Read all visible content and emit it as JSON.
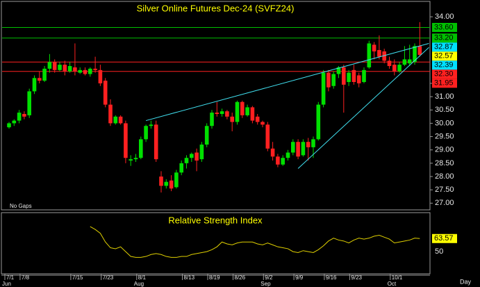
{
  "chart_data": {
    "type": "candlestick",
    "title": "Silver Online Futures Dec-24 (SVFZ24)",
    "categories": [
      "7/1",
      null,
      null,
      "7/8",
      null,
      null,
      null,
      null,
      null,
      null,
      null,
      null,
      null,
      "7/15",
      null,
      null,
      null,
      null,
      null,
      "7/23",
      null,
      null,
      null,
      null,
      null,
      null,
      "8/1",
      null,
      null,
      null,
      null,
      null,
      null,
      null,
      null,
      "8/13",
      null,
      null,
      null,
      null,
      "8/19",
      null,
      null,
      null,
      null,
      "8/26",
      null,
      null,
      null,
      null,
      null,
      "9/2",
      null,
      null,
      null,
      null,
      null,
      "9/9",
      null,
      null,
      null,
      null,
      null,
      "9/16",
      null,
      null,
      null,
      null,
      "9/23",
      null,
      null,
      null,
      null,
      null,
      null,
      null,
      "10/1",
      null,
      null,
      null,
      null,
      null
    ],
    "months": [
      "Jun",
      null,
      null,
      null,
      null,
      null,
      null,
      null,
      null,
      null,
      null,
      null,
      null,
      null,
      null,
      null,
      null,
      null,
      null,
      null,
      null,
      null,
      null,
      null,
      null,
      null,
      "Aug",
      null,
      null,
      null,
      null,
      null,
      null,
      null,
      null,
      null,
      null,
      null,
      null,
      null,
      null,
      null,
      null,
      null,
      null,
      null,
      null,
      null,
      null,
      null,
      null,
      "Sep",
      null,
      null,
      null,
      null,
      null,
      null,
      null,
      null,
      null,
      null,
      null,
      null,
      null,
      null,
      null,
      null,
      null,
      null,
      null,
      null,
      null,
      null,
      null,
      null,
      "Oct",
      null,
      null,
      null,
      null,
      null
    ],
    "open": [
      29.85,
      30.0,
      30.1,
      30.35,
      30.3,
      31.2,
      31.7,
      31.6,
      32.05,
      32.3,
      32.0,
      32.2,
      31.95,
      32.1,
      31.9,
      32.0,
      31.85,
      32.05,
      32.0,
      31.6,
      30.7,
      30.0,
      30.25,
      30.0,
      28.6,
      28.65,
      28.7,
      29.4,
      29.9,
      29.95,
      28.0,
      27.65,
      27.85,
      27.6,
      28.15,
      28.5,
      28.7,
      28.9,
      28.65,
      29.2,
      29.9,
      30.4,
      30.35,
      30.45,
      30.25,
      30.05,
      30.8,
      30.3,
      30.6,
      30.25,
      30.05,
      29.95,
      29.05,
      28.75,
      28.45,
      28.7,
      28.9,
      29.3,
      28.8,
      29.3,
      29.1,
      29.4,
      30.7,
      31.9,
      31.4,
      31.85,
      32.1,
      31.55,
      32.0,
      31.8,
      31.55,
      32.1,
      32.95,
      32.75,
      32.7,
      32.35,
      32.2,
      31.95,
      32.2,
      32.25,
      32.3,
      32.9
    ],
    "high": [
      30.05,
      30.15,
      30.5,
      30.45,
      31.3,
      31.8,
      31.95,
      32.15,
      32.6,
      32.4,
      32.3,
      32.35,
      32.3,
      33.0,
      32.1,
      32.1,
      32.1,
      32.5,
      32.2,
      31.7,
      30.9,
      30.3,
      30.3,
      30.1,
      28.8,
      28.85,
      29.5,
      29.95,
      30.1,
      30.1,
      28.2,
      27.9,
      28.05,
      28.25,
      28.6,
      28.8,
      28.9,
      29.05,
      29.3,
      30.0,
      30.5,
      30.8,
      30.55,
      30.5,
      30.4,
      30.85,
      30.85,
      30.7,
      30.65,
      30.35,
      30.1,
      30.05,
      29.3,
      28.85,
      28.8,
      29.0,
      29.4,
      29.4,
      29.4,
      29.45,
      29.5,
      30.8,
      32.0,
      32.0,
      31.95,
      32.15,
      32.2,
      32.0,
      32.2,
      31.9,
      32.1,
      33.1,
      33.05,
      33.3,
      32.8,
      32.5,
      32.4,
      32.3,
      32.9,
      32.95,
      33.0,
      33.8
    ],
    "low": [
      29.8,
      29.9,
      30.0,
      30.15,
      30.2,
      31.1,
      31.5,
      31.55,
      31.9,
      31.9,
      31.95,
      31.8,
      31.9,
      31.8,
      31.85,
      31.8,
      31.75,
      31.9,
      31.4,
      30.6,
      29.9,
      29.95,
      29.95,
      28.5,
      28.4,
      28.55,
      28.65,
      29.3,
      29.8,
      28.55,
      27.4,
      27.55,
      27.45,
      27.55,
      28.05,
      28.3,
      28.55,
      28.2,
      28.55,
      29.1,
      29.8,
      30.25,
      30.25,
      30.15,
      29.7,
      29.95,
      30.2,
      30.25,
      30.0,
      29.95,
      29.85,
      28.95,
      28.6,
      28.35,
      28.4,
      28.6,
      28.8,
      28.65,
      28.75,
      28.6,
      28.7,
      29.35,
      30.6,
      31.2,
      31.3,
      31.7,
      30.4,
      31.4,
      31.45,
      31.35,
      31.5,
      32.05,
      32.4,
      32.4,
      32.25,
      32.05,
      31.8,
      31.9,
      32.15,
      32.15,
      32.2,
      32.5
    ],
    "close": [
      30.0,
      30.1,
      30.4,
      30.25,
      31.2,
      31.7,
      31.6,
      32.05,
      32.3,
      32.0,
      32.2,
      31.95,
      32.15,
      31.95,
      32.0,
      31.85,
      32.05,
      32.0,
      31.5,
      30.7,
      30.0,
      30.25,
      30.0,
      28.7,
      28.65,
      28.7,
      29.4,
      29.9,
      29.95,
      28.65,
      27.65,
      27.8,
      27.55,
      28.15,
      28.5,
      28.7,
      28.85,
      28.6,
      29.2,
      29.9,
      30.4,
      30.35,
      30.45,
      30.25,
      30.05,
      30.8,
      30.3,
      30.6,
      30.1,
      30.05,
      29.95,
      29.05,
      28.75,
      28.45,
      28.7,
      28.9,
      29.3,
      28.75,
      29.3,
      29.1,
      29.4,
      30.7,
      31.9,
      31.35,
      31.85,
      32.1,
      31.45,
      31.9,
      31.55,
      31.5,
      32.0,
      33.0,
      32.7,
      32.5,
      32.35,
      32.15,
      31.95,
      32.2,
      32.4,
      32.4,
      32.9,
      32.57
    ],
    "up_color": "#00e000",
    "down_color": "#ff2020",
    "ylim": [
      26.8,
      34.5
    ],
    "yticks": [
      {
        "value": 34,
        "label": "34.00"
      },
      {
        "value": 31.5,
        "label": "31.50"
      },
      {
        "value": 31,
        "label": "31.00"
      },
      {
        "value": 30.5,
        "label": "30.50"
      },
      {
        "value": 30,
        "label": "30.00"
      },
      {
        "value": 29.5,
        "label": "29.50"
      },
      {
        "value": 29,
        "label": "29.00"
      },
      {
        "value": 28.5,
        "label": "28.50"
      },
      {
        "value": 28,
        "label": "28.00"
      },
      {
        "value": 27.5,
        "label": "27.50"
      },
      {
        "value": 27,
        "label": "27.00"
      }
    ],
    "price_markers": [
      {
        "value": 33.6,
        "label": "33.60",
        "color": "#00c000",
        "line": true
      },
      {
        "value": 33.2,
        "label": "33.20",
        "color": "#00c000",
        "line": true
      },
      {
        "value": 32.87,
        "label": "32.87",
        "color": "#00e0ff",
        "line": false
      },
      {
        "value": 32.57,
        "label": "32.57",
        "color": "#ffff00",
        "line": false
      },
      {
        "value": 32.39,
        "label": "32.39",
        "color": "#00e0ff",
        "line": false
      },
      {
        "value": 32.3,
        "label": "32.30",
        "color": "#ff2020",
        "line": true
      },
      {
        "value": 31.95,
        "label": "31.95",
        "color": "#ff2020",
        "line": true
      }
    ],
    "trendlines": [
      {
        "x": [
          27,
          82.8
        ],
        "values": [
          30.1,
          33.0
        ],
        "color": "#40e0f0"
      },
      {
        "x": [
          57,
          82.8
        ],
        "values": [
          28.3,
          32.85
        ],
        "color": "#40e0f0"
      }
    ],
    "gap_mode": "No Gaps",
    "interval": "Day",
    "indicator": {
      "type": "line",
      "title": "Relative Strength Index",
      "color": "#e0d000",
      "values": [
        null,
        null,
        null,
        null,
        null,
        null,
        null,
        null,
        null,
        null,
        null,
        null,
        null,
        null,
        null,
        null,
        76,
        73,
        69,
        60,
        54,
        53,
        55,
        50,
        45,
        44,
        44,
        45,
        47,
        48,
        47,
        45,
        44,
        44,
        45,
        45,
        47,
        48,
        49,
        50,
        52,
        55,
        60,
        58,
        57,
        59,
        60,
        60,
        60,
        58,
        57,
        59,
        57,
        55,
        54,
        53,
        50,
        49,
        51,
        50,
        49,
        52,
        56,
        61,
        64,
        62,
        61,
        59,
        62,
        64,
        63,
        64,
        66,
        67,
        65,
        63,
        59,
        60,
        61,
        62,
        64,
        63.57
      ],
      "ylim": [
        27,
        89
      ],
      "yticks": [
        50
      ]
    }
  }
}
